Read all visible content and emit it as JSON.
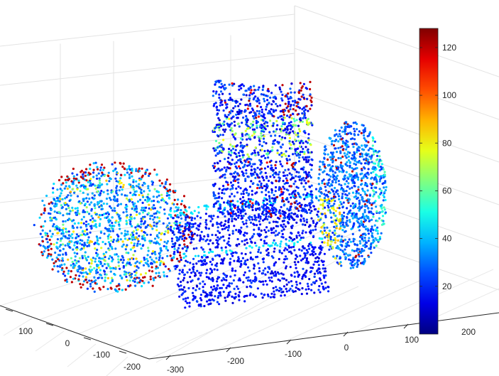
{
  "chart_data": {
    "type": "scatter",
    "title": "",
    "xlabel": "",
    "ylabel": "",
    "zlabel": "",
    "xlim": [
      -300,
      100
    ],
    "ylim": [
      -200,
      200
    ],
    "z_reference_labels": [
      "100",
      "0",
      "-100",
      "-200"
    ],
    "x_ticks": [
      "-300",
      "-200",
      "-100",
      "0",
      "100"
    ],
    "y_ticks": [
      "-200",
      "-100",
      "0",
      "100",
      "200"
    ],
    "grid": true,
    "colormap": "jet",
    "colorbar": {
      "range": [
        0,
        128
      ],
      "ticks": [
        20,
        40,
        60,
        80,
        100,
        120
      ],
      "tick_labels": [
        "20",
        "40",
        "60",
        "80",
        "100",
        "120"
      ],
      "colors": [
        "#00008f",
        "#0000ff",
        "#0080ff",
        "#00ffff",
        "#80ff80",
        "#ffff00",
        "#ff8000",
        "#ff0000",
        "#800000"
      ]
    },
    "objects": [
      {
        "shape": "cylinder",
        "x": -150,
        "y": -20,
        "z": 30,
        "value_main": 20,
        "value_band": 55,
        "value_spot": 120
      },
      {
        "shape": "slab",
        "x": -60,
        "y": 20,
        "z": -40,
        "value_main": 10
      },
      {
        "shape": "box",
        "x": -40,
        "y": 80,
        "z": 110,
        "value_main": 10,
        "value_band": 55,
        "value_spot": 120
      },
      {
        "shape": "cylinder",
        "x": 60,
        "y": 120,
        "z": 60,
        "value_main": 20,
        "value_band": 45,
        "value_spot": 120
      }
    ]
  }
}
